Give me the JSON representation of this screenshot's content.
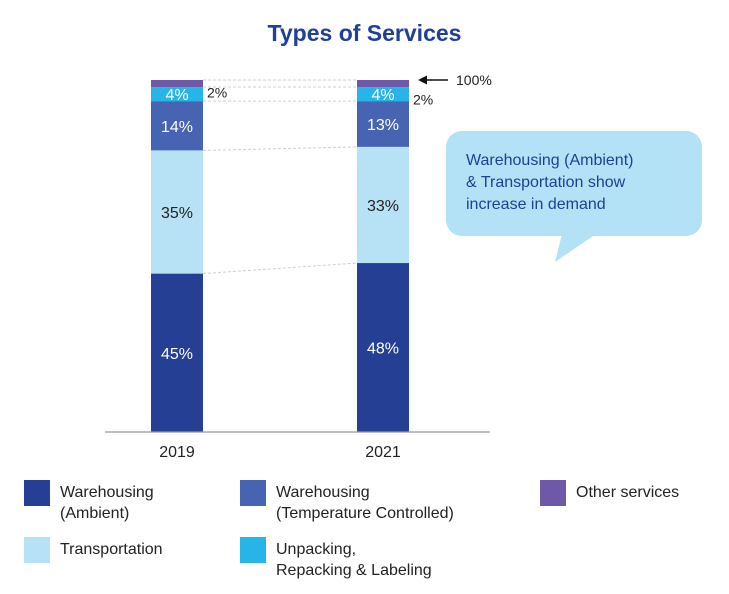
{
  "chart_data": {
    "type": "bar",
    "stacked": true,
    "title": "Types of Services",
    "categories": [
      "2019",
      "2021"
    ],
    "ylim": [
      0,
      100
    ],
    "series": [
      {
        "name": "Warehousing\n(Ambient)",
        "color": "#243f93",
        "values": [
          45,
          48
        ],
        "labels": [
          "45%",
          "48%"
        ],
        "label_color": "#ffffff"
      },
      {
        "name": "Transportation",
        "color": "#b7e2f6",
        "values": [
          35,
          33
        ],
        "labels": [
          "35%",
          "33%"
        ],
        "label_color": "#222222"
      },
      {
        "name": "Warehousing\n(Temperature Controlled)",
        "color": "#4764b3",
        "values": [
          14,
          13
        ],
        "labels": [
          "14%",
          "13%"
        ],
        "label_color": "#ffffff"
      },
      {
        "name": "Unpacking,\nRepacking & Labeling",
        "color": "#27b5e8",
        "values": [
          4,
          4
        ],
        "labels": [
          "4%",
          "4%"
        ],
        "label_color": "#ffffff"
      },
      {
        "name": "Other services",
        "color": "#6e58a8",
        "values": [
          2,
          2
        ],
        "labels": [
          "2%",
          "2%"
        ],
        "label_color": "#222222"
      }
    ],
    "total_annotation": "100%",
    "callout": "Warehousing (Ambient)\n& Transportation show\nincrease in demand",
    "legend_order": [
      0,
      2,
      4,
      1,
      3
    ]
  }
}
